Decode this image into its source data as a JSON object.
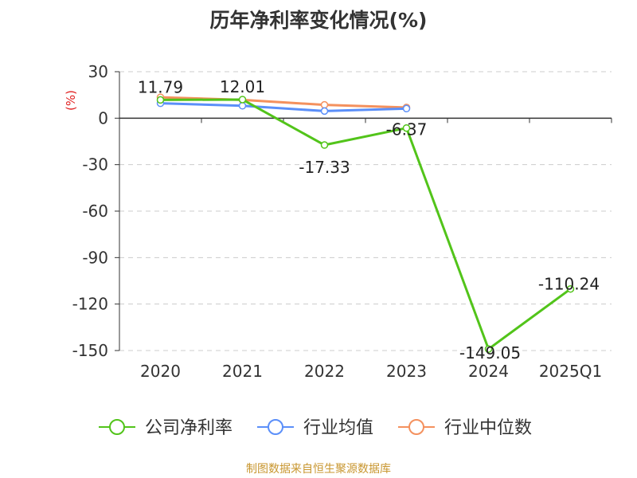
{
  "chart_data": {
    "type": "line",
    "title": "历年净利率变化情况(%)",
    "ylabel": "(%)",
    "xlabel": "",
    "categories": [
      "2020",
      "2021",
      "2022",
      "2023",
      "2024",
      "2025Q1"
    ],
    "ylim": [
      -150,
      30
    ],
    "yticks": [
      30,
      0,
      -30,
      -60,
      -90,
      -120,
      -150
    ],
    "grid": true,
    "legend_position": "bottom",
    "series": [
      {
        "name": "公司净利率",
        "color": "#52c41a",
        "values": [
          11.79,
          12.01,
          -17.33,
          -6.37,
          -149.05,
          -110.24
        ],
        "show_labels": true
      },
      {
        "name": "行业均值",
        "color": "#5b8ff9",
        "values": [
          9.6,
          8.0,
          4.6,
          6.2,
          null,
          null
        ],
        "show_labels": false
      },
      {
        "name": "行业中位数",
        "color": "#f4915e",
        "values": [
          13.5,
          11.8,
          8.6,
          6.9,
          null,
          null
        ],
        "show_labels": false
      }
    ]
  },
  "footer": "制图数据来自恒生聚源数据库"
}
